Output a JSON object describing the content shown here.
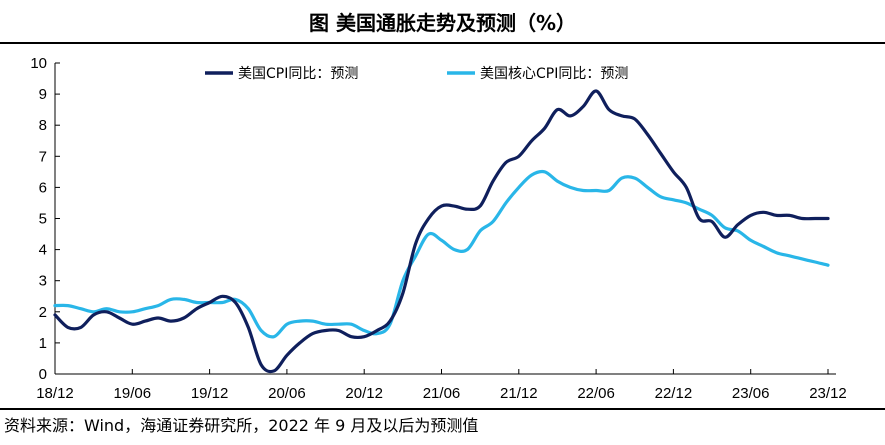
{
  "header": {
    "title": "图  美国通胀走势及预测（%）"
  },
  "footer": {
    "source": "资料来源：Wind，海通证券研究所，2022 年 9 月及以后为预测值"
  },
  "chart_data": {
    "type": "line",
    "title": "图  美国通胀走势及预测（%）",
    "xlabel": "",
    "ylabel": "",
    "ylim": [
      0,
      10
    ],
    "yticks": [
      0,
      1,
      2,
      3,
      4,
      5,
      6,
      7,
      8,
      9,
      10
    ],
    "xtick_labels": [
      "18/12",
      "19/06",
      "19/12",
      "20/06",
      "20/12",
      "21/06",
      "21/12",
      "22/06",
      "22/12",
      "23/06",
      "23/12"
    ],
    "x_start": "2018-12",
    "x_end": "2023-12",
    "grid": false,
    "legend_position": "top",
    "series": [
      {
        "name": "美国CPI同比：预测",
        "color": "#0f1f5c",
        "values": [
          1.9,
          1.5,
          1.5,
          1.9,
          2.0,
          1.8,
          1.6,
          1.7,
          1.8,
          1.7,
          1.8,
          2.1,
          2.3,
          2.5,
          2.3,
          1.5,
          0.3,
          0.1,
          0.6,
          1.0,
          1.3,
          1.4,
          1.4,
          1.2,
          1.2,
          1.4,
          1.7,
          2.6,
          4.2,
          5.0,
          5.4,
          5.4,
          5.3,
          5.4,
          6.2,
          6.8,
          7.0,
          7.5,
          7.9,
          8.5,
          8.3,
          8.6,
          9.1,
          8.5,
          8.3,
          8.2,
          7.7,
          7.1,
          6.5,
          6.0,
          5.0,
          4.9,
          4.4,
          4.8,
          5.1,
          5.2,
          5.1,
          5.1,
          5.0,
          5.0,
          5.0
        ]
      },
      {
        "name": "美国核心CPI同比：预测",
        "color": "#29b6e8",
        "values": [
          2.2,
          2.2,
          2.1,
          2.0,
          2.1,
          2.0,
          2.0,
          2.1,
          2.2,
          2.4,
          2.4,
          2.3,
          2.3,
          2.3,
          2.4,
          2.1,
          1.4,
          1.2,
          1.6,
          1.7,
          1.7,
          1.6,
          1.6,
          1.6,
          1.4,
          1.3,
          1.6,
          3.0,
          3.8,
          4.5,
          4.3,
          4.0,
          4.0,
          4.6,
          4.9,
          5.5,
          6.0,
          6.4,
          6.5,
          6.2,
          6.0,
          5.9,
          5.9,
          5.9,
          6.3,
          6.3,
          6.0,
          5.7,
          5.6,
          5.5,
          5.3,
          5.1,
          4.7,
          4.6,
          4.3,
          4.1,
          3.9,
          3.8,
          3.7,
          3.6,
          3.5
        ]
      }
    ]
  }
}
